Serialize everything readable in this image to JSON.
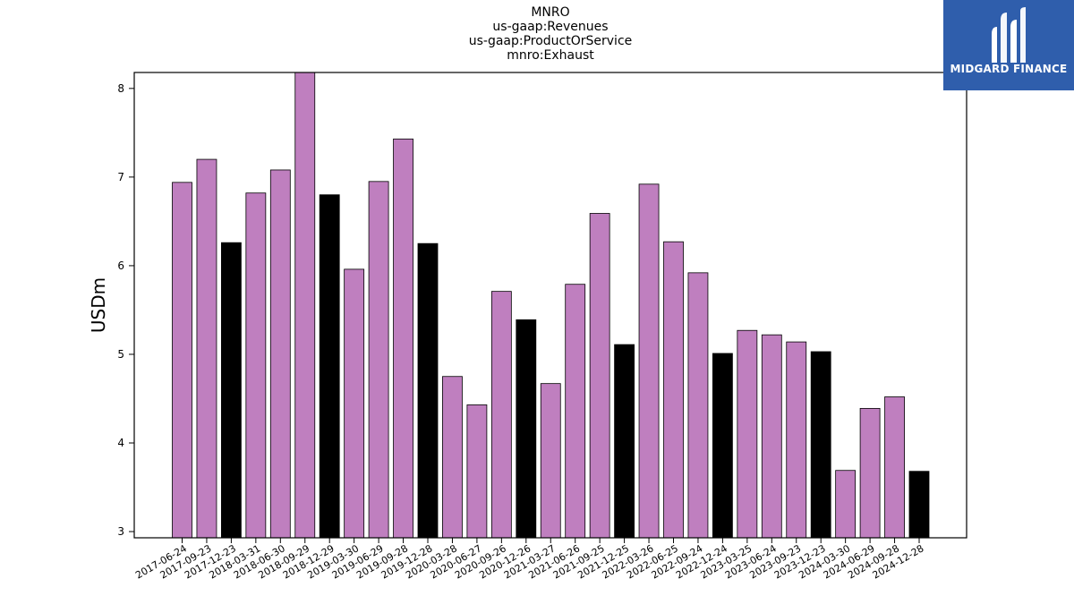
{
  "chart_data": {
    "type": "bar",
    "title_lines": [
      "MNRO",
      "us-gaap:Revenues",
      "us-gaap:ProductOrService",
      "mnro:Exhaust"
    ],
    "xlabel": "",
    "ylabel": "USDm",
    "ylim": [
      2.93,
      8.18
    ],
    "yticks": [
      3,
      4,
      5,
      6,
      7,
      8
    ],
    "grid": false,
    "categories": [
      "2017-06-24",
      "2017-09-23",
      "2017-12-23",
      "2018-03-31",
      "2018-06-30",
      "2018-09-29",
      "2018-12-29",
      "2019-03-30",
      "2019-06-29",
      "2019-09-28",
      "2019-12-28",
      "2020-03-28",
      "2020-06-27",
      "2020-09-26",
      "2020-12-26",
      "2021-03-27",
      "2021-06-26",
      "2021-09-25",
      "2021-12-25",
      "2022-03-26",
      "2022-06-25",
      "2022-09-24",
      "2022-12-24",
      "2023-03-25",
      "2023-06-24",
      "2023-09-23",
      "2023-12-23",
      "2024-03-30",
      "2024-06-29",
      "2024-09-28",
      "2024-12-28"
    ],
    "values": [
      6.94,
      7.2,
      6.26,
      6.82,
      7.08,
      8.2,
      6.8,
      5.96,
      6.95,
      7.43,
      6.25,
      4.75,
      4.43,
      5.71,
      5.39,
      4.67,
      5.79,
      6.59,
      5.11,
      6.92,
      6.27,
      5.92,
      5.01,
      5.27,
      5.22,
      5.14,
      5.03,
      3.69,
      4.39,
      4.52,
      3.68
    ],
    "highlight_indices": [
      2,
      6,
      10,
      14,
      18,
      22,
      26,
      30
    ],
    "colors": {
      "bar": "#bf7fbf",
      "highlight": "#000000",
      "edge": "#000000"
    }
  },
  "logo": {
    "text": "MIDGARD FINANCE",
    "background": "#2f5eac",
    "icon": "midgard-logo-mark"
  }
}
